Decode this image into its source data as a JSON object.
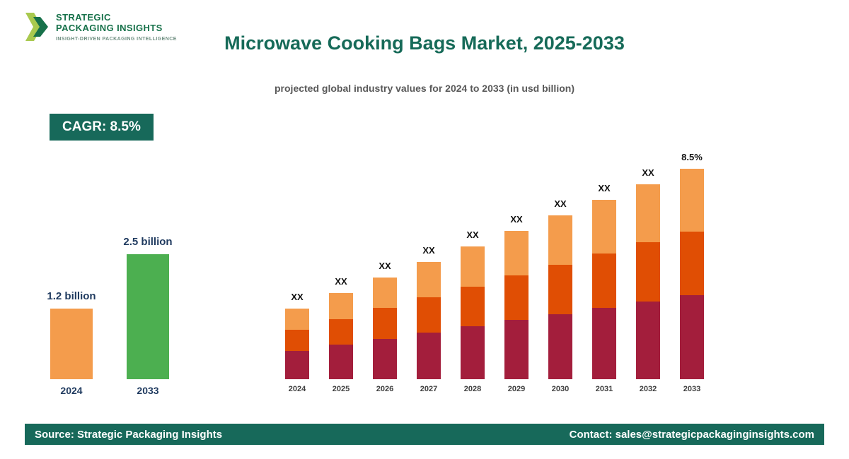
{
  "brand": {
    "name_line1": "STRATEGIC",
    "name_line2": "PACKAGING INSIGHTS",
    "tagline": "INSIGHT-DRIVEN PACKAGING INTELLIGENCE"
  },
  "header": {
    "title": "Microwave Cooking Bags Market, 2025-2033",
    "subtitle": "projected global industry values for 2024 to 2033 (in usd billion)"
  },
  "cagr_badge": "CAGR: 8.5%",
  "colors": {
    "brand_green_dark": "#17695a",
    "brand_green_logo": "#17714a",
    "brand_green_light": "#a9c94f",
    "title_teal": "#166a58",
    "navy_label": "#1f3a5f",
    "maroon": "#a31e3c",
    "dark_orange": "#e04e04",
    "light_orange": "#f49c4c",
    "green_bar": "#4caf50"
  },
  "summary_chart": {
    "type": "bar",
    "unit": "usd billion",
    "bars": [
      {
        "year": "2024",
        "label": "1.2 billion",
        "value": 1.2,
        "color": "#f49c4c"
      },
      {
        "year": "2033",
        "label": "2.5 billion",
        "value": 2.5,
        "color": "#4caf50"
      }
    ]
  },
  "chart_data": {
    "type": "bar",
    "subtype": "stacked",
    "title": "Microwave Cooking Bags Market, 2025-2033",
    "xlabel": "",
    "ylabel": "usd billion",
    "axes_shown": false,
    "legend_shown": false,
    "categories": [
      "2024",
      "2025",
      "2026",
      "2027",
      "2028",
      "2029",
      "2030",
      "2031",
      "2032",
      "2033"
    ],
    "bar_labels": [
      "XX",
      "XX",
      "XX",
      "XX",
      "XX",
      "XX",
      "XX",
      "XX",
      "XX",
      "8.5%"
    ],
    "estimated_totals": [
      1.2,
      1.3,
      1.41,
      1.53,
      1.66,
      1.8,
      1.96,
      2.13,
      2.31,
      2.5
    ],
    "series": [
      {
        "name": "segment-bottom",
        "color": "#a31e3c",
        "values": [
          0.48,
          0.52,
          0.56,
          0.61,
          0.66,
          0.72,
          0.78,
          0.85,
          0.92,
          1.0
        ]
      },
      {
        "name": "segment-middle",
        "color": "#e04e04",
        "values": [
          0.36,
          0.39,
          0.43,
          0.46,
          0.5,
          0.54,
          0.59,
          0.64,
          0.7,
          0.75
        ]
      },
      {
        "name": "segment-top",
        "color": "#f49c4c",
        "values": [
          0.36,
          0.39,
          0.42,
          0.46,
          0.5,
          0.54,
          0.59,
          0.64,
          0.69,
          0.75
        ]
      }
    ]
  },
  "footer": {
    "source": "Source: Strategic Packaging Insights",
    "contact": "Contact: sales@strategicpackaginginsights.com"
  }
}
